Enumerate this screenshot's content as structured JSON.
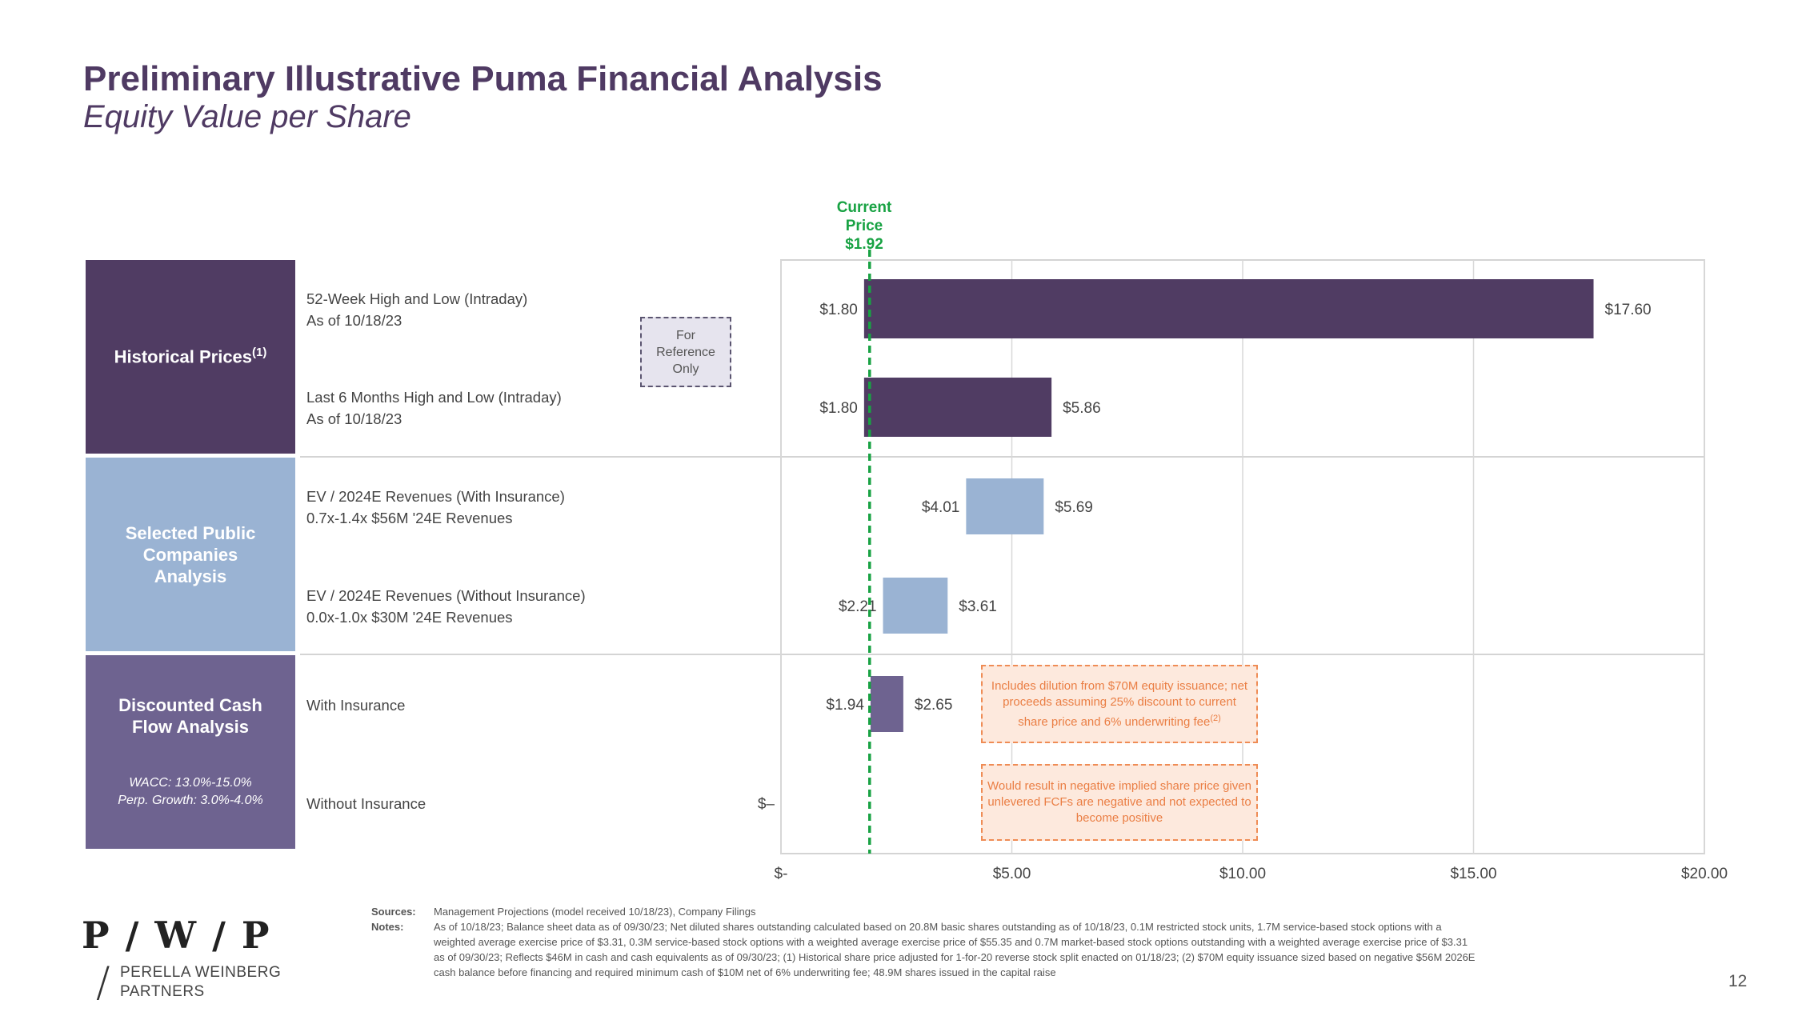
{
  "title": "Preliminary Illustrative Puma Financial Analysis",
  "subtitle": "Equity Value per Share",
  "categories": {
    "historical": {
      "label": "Historical Prices",
      "sup": "(1)"
    },
    "public": {
      "label": "Selected Public Companies Analysis"
    },
    "dcf": {
      "label": "Discounted Cash Flow Analysis",
      "wacc": "WACC: 13.0%-15.0%",
      "perp": "Perp. Growth: 3.0%-4.0%"
    }
  },
  "rows": [
    {
      "line1": "52-Week High and Low (Intraday)",
      "line2": "As of 10/18/23"
    },
    {
      "line1": "Last 6 Months High and Low (Intraday)",
      "line2": "As of 10/18/23"
    },
    {
      "line1": "EV / 2024E Revenues (With Insurance)",
      "line2": "0.7x-1.4x $56M '24E Revenues"
    },
    {
      "line1": "EV / 2024E Revenues (Without Insurance)",
      "line2": "0.0x-1.0x $30M '24E Revenues"
    },
    {
      "line1": "With Insurance"
    },
    {
      "line1": "Without Insurance"
    }
  ],
  "reference_box": "For Reference Only",
  "note_boxes": {
    "dilution": "Includes dilution from $70M equity issuance; net proceeds assuming 25% discount to current share price and 6% underwriting fee",
    "dilution_sup": "(2)",
    "negative": "Would result in negative implied share price given unlevered FCFs are negative and not expected to become positive"
  },
  "current_price": {
    "line1": "Current",
    "line2": "Price",
    "value_label": "$1.92"
  },
  "colors": {
    "purple": "#503c63",
    "light_blue": "#9ab3d3",
    "violet": "#6e6390",
    "green": "#18a243",
    "orange": "#ef8c55"
  },
  "chart_data": {
    "type": "bar",
    "orientation": "horizontal-range",
    "title": "Equity Value per Share",
    "xlim": [
      0,
      20
    ],
    "x_ticks": [
      0,
      5,
      10,
      15,
      20
    ],
    "x_tick_labels": [
      "$-",
      "$5.00",
      "$10.00",
      "$15.00",
      "$20.00"
    ],
    "reference_line": {
      "name": "Current Price",
      "value": 1.92
    },
    "series": [
      {
        "name": "52-Week High and Low (Intraday)",
        "low": 1.8,
        "high": 17.6,
        "low_label": "$1.80",
        "high_label": "$17.60",
        "color": "#503c63"
      },
      {
        "name": "Last 6 Months High and Low (Intraday)",
        "low": 1.8,
        "high": 5.86,
        "low_label": "$1.80",
        "high_label": "$5.86",
        "color": "#503c63"
      },
      {
        "name": "EV / 2024E Revenues (With Insurance)",
        "low": 4.01,
        "high": 5.69,
        "low_label": "$4.01",
        "high_label": "$5.69",
        "color": "#9ab3d3"
      },
      {
        "name": "EV / 2024E Revenues (Without Insurance)",
        "low": 2.21,
        "high": 3.61,
        "low_label": "$2.21",
        "high_label": "$3.61",
        "color": "#9ab3d3"
      },
      {
        "name": "DCF With Insurance",
        "low": 1.94,
        "high": 2.65,
        "low_label": "$1.94",
        "high_label": "$2.65",
        "color": "#6e6390"
      },
      {
        "name": "DCF Without Insurance",
        "low": 0,
        "high": 0,
        "low_label": "$–",
        "high_label": "",
        "color": "#6e6390"
      }
    ]
  },
  "logo": {
    "mark": "P / W / P",
    "line1": "PERELLA WEINBERG",
    "line2": "PARTNERS"
  },
  "footnotes": {
    "sources_key": "Sources:",
    "sources": "Management Projections (model received 10/18/23), Company Filings",
    "notes_key": "Notes:",
    "notes": "As of 10/18/23; Balance sheet data as of 09/30/23; Net diluted shares outstanding calculated based on 20.8M basic shares outstanding as of 10/18/23, 0.1M restricted stock units, 1.7M service-based stock options with a weighted average exercise price of $3.31, 0.3M service-based stock options with a weighted average exercise price of $55.35 and 0.7M market-based stock options outstanding with a weighted average exercise price of $3.31 as of 09/30/23; Reflects $46M in cash and cash equivalents as of 09/30/23; (1) Historical share price adjusted for 1-for-20 reverse stock split enacted on 01/18/23; (2) $70M equity issuance sized based on negative $56M 2026E cash balance before financing and required minimum cash of $10M net of 6% underwriting fee; 48.9M shares issued in the capital raise"
  },
  "page_number": "12"
}
